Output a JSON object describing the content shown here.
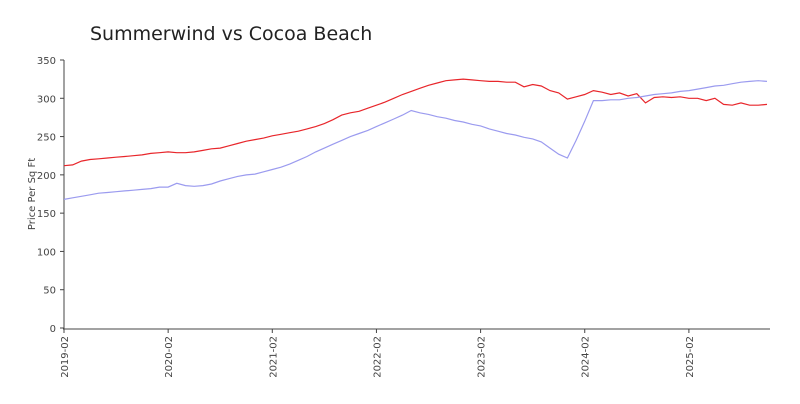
{
  "chart_data": {
    "type": "line",
    "title": "Summerwind vs Cocoa Beach",
    "y_label": "Price Per Sq Ft",
    "x": [
      "2019-02",
      "2019-03",
      "2019-04",
      "2019-05",
      "2019-06",
      "2019-07",
      "2019-08",
      "2019-09",
      "2019-10",
      "2019-11",
      "2019-12",
      "2020-01",
      "2020-02",
      "2020-03",
      "2020-04",
      "2020-05",
      "2020-06",
      "2020-07",
      "2020-08",
      "2020-09",
      "2020-10",
      "2020-11",
      "2020-12",
      "2021-01",
      "2021-02",
      "2021-03",
      "2021-04",
      "2021-05",
      "2021-06",
      "2021-07",
      "2021-08",
      "2021-09",
      "2021-10",
      "2021-11",
      "2021-12",
      "2022-01",
      "2022-02",
      "2022-03",
      "2022-04",
      "2022-05",
      "2022-06",
      "2022-07",
      "2022-08",
      "2022-09",
      "2022-10",
      "2022-11",
      "2022-12",
      "2023-01",
      "2023-02",
      "2023-03",
      "2023-04",
      "2023-05",
      "2023-06",
      "2023-07",
      "2023-08",
      "2023-09",
      "2023-10",
      "2023-11",
      "2023-12",
      "2024-01",
      "2024-02",
      "2024-03",
      "2024-04",
      "2024-05",
      "2024-06",
      "2024-07",
      "2024-08",
      "2024-09",
      "2024-10",
      "2024-11",
      "2024-12",
      "2025-01",
      "2025-02",
      "2025-03",
      "2025-04",
      "2025-05",
      "2025-06",
      "2025-07",
      "2025-08",
      "2025-09",
      "2025-10",
      "2025-11"
    ],
    "series": [
      {
        "color": "#e8262b",
        "values": [
          212,
          213,
          218,
          220,
          221,
          222,
          223,
          224,
          225,
          226,
          228,
          229,
          230,
          229,
          229,
          230,
          232,
          234,
          235,
          238,
          241,
          244,
          246,
          248,
          251,
          253,
          255,
          257,
          260,
          263,
          267,
          272,
          278,
          281,
          283,
          287,
          291,
          295,
          300,
          305,
          309,
          313,
          317,
          320,
          323,
          324,
          325,
          324,
          323,
          322,
          322,
          321,
          321,
          315,
          318,
          316,
          310,
          307,
          299,
          302,
          305,
          310,
          308,
          305,
          307,
          303,
          306,
          294,
          301,
          302,
          301,
          302,
          300,
          300,
          297,
          300,
          292,
          291,
          294,
          291,
          291,
          292
        ]
      },
      {
        "color": "#9b9bef",
        "values": [
          168,
          170,
          172,
          174,
          176,
          177,
          178,
          179,
          180,
          181,
          182,
          184,
          184,
          189,
          186,
          185,
          186,
          188,
          192,
          195,
          198,
          200,
          201,
          204,
          207,
          210,
          214,
          219,
          224,
          230,
          235,
          240,
          245,
          250,
          254,
          258,
          263,
          268,
          273,
          278,
          284,
          281,
          279,
          276,
          274,
          271,
          269,
          266,
          264,
          260,
          257,
          254,
          252,
          249,
          247,
          243,
          235,
          227,
          222,
          245,
          270,
          297,
          297,
          298,
          298,
          300,
          301,
          303,
          305,
          306,
          307,
          309,
          310,
          312,
          314,
          316,
          317,
          319,
          321,
          322,
          323,
          322
        ]
      }
    ],
    "xticks": [
      "2019-02",
      "2020-02",
      "2021-02",
      "2022-02",
      "2023-02",
      "2024-02",
      "2025-02"
    ],
    "ylim": [
      0,
      350
    ],
    "yticks": [
      0,
      50,
      100,
      150,
      200,
      250,
      300,
      350
    ],
    "grid": false
  }
}
